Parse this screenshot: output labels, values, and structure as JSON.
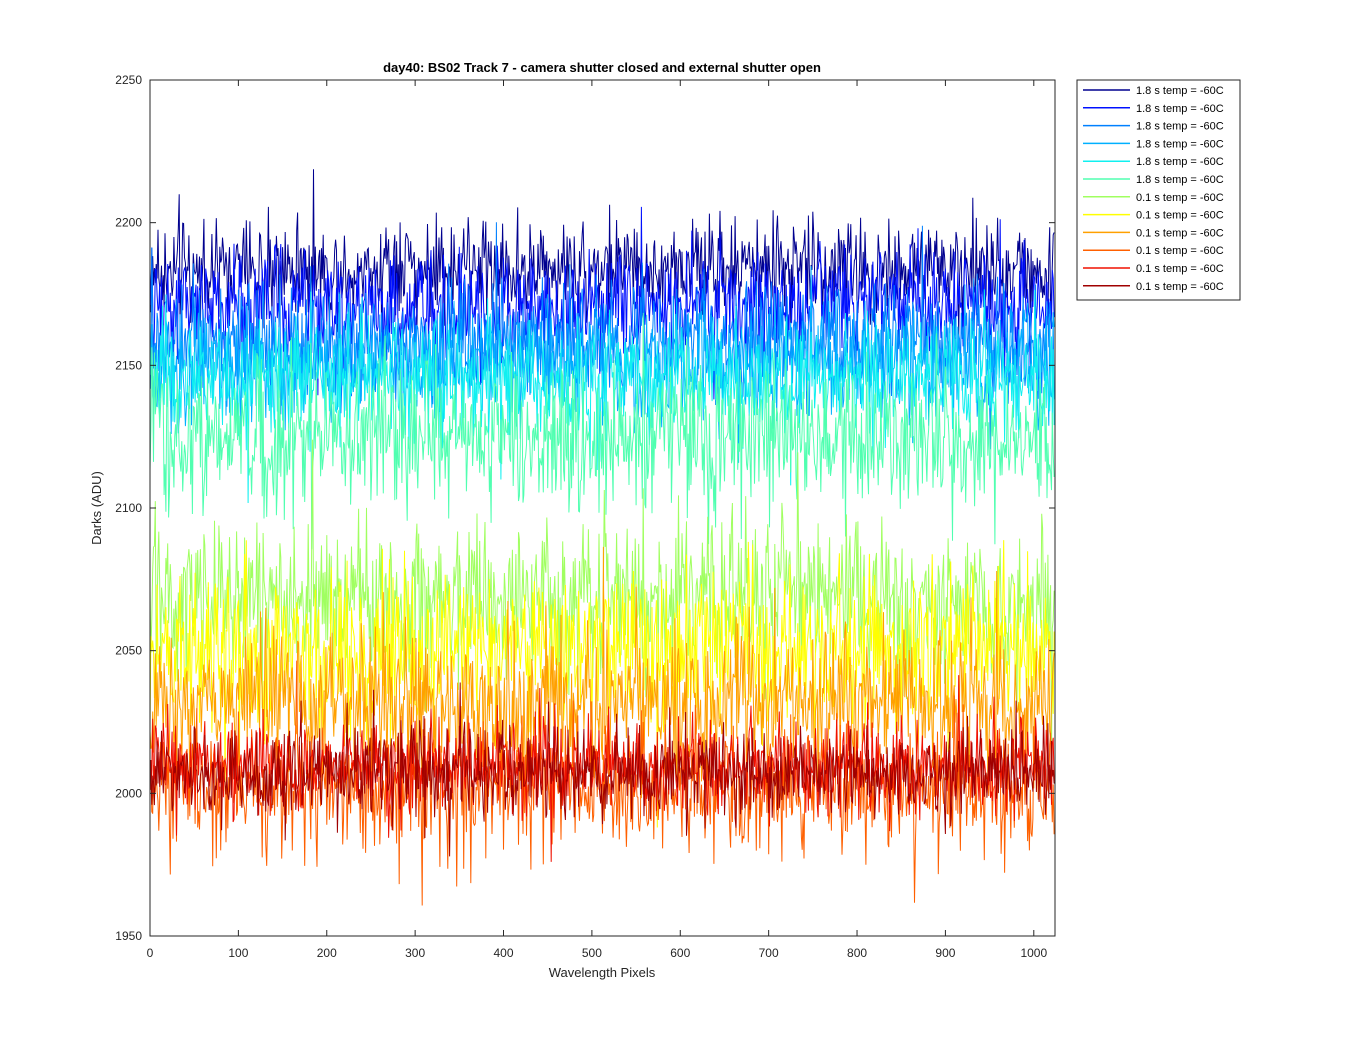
{
  "chart_data": {
    "type": "line",
    "title": "day40: BS02  Track 7 - camera shutter closed and external shutter open",
    "xlabel": "Wavelength Pixels",
    "ylabel": "Darks (ADU)",
    "xlim": [
      0,
      1024
    ],
    "ylim": [
      1950,
      2250
    ],
    "xticks": [
      0,
      100,
      200,
      300,
      400,
      500,
      600,
      700,
      800,
      900,
      1000
    ],
    "yticks": [
      1950,
      2000,
      2050,
      2100,
      2150,
      2200,
      2250
    ],
    "xtick_labels": [
      "0",
      "100",
      "200",
      "300",
      "400",
      "500",
      "600",
      "700",
      "800",
      "900",
      "1000"
    ],
    "ytick_labels": [
      "1950",
      "2000",
      "2050",
      "2100",
      "2150",
      "2200",
      "2250"
    ],
    "grid": false,
    "legend_position": "outside top-right",
    "series_note": "Each series is ~1024 noisy samples; summarized by approximate mean level and peak-to-peak spread (ADU).",
    "series": [
      {
        "name": "1.8 s temp = -60C",
        "color": "#00008f",
        "mean": 2184,
        "spread": 30
      },
      {
        "name": "1.8 s temp = -60C",
        "color": "#0010ff",
        "mean": 2171,
        "spread": 32
      },
      {
        "name": "1.8 s temp = -60C",
        "color": "#0080ff",
        "mean": 2158,
        "spread": 34
      },
      {
        "name": "1.8 s temp = -60C",
        "color": "#00b0ff",
        "mean": 2150,
        "spread": 34
      },
      {
        "name": "1.8 s temp = -60C",
        "color": "#10f0f0",
        "mean": 2145,
        "spread": 34
      },
      {
        "name": "1.8 s temp = -60C",
        "color": "#50ffb0",
        "mean": 2125,
        "spread": 44
      },
      {
        "name": "0.1 s temp = -60C",
        "color": "#a0ff60",
        "mean": 2068,
        "spread": 46
      },
      {
        "name": "0.1 s temp = -60C",
        "color": "#ffff00",
        "mean": 2050,
        "spread": 46
      },
      {
        "name": "0.1 s temp = -60C",
        "color": "#ffa000",
        "mean": 2032,
        "spread": 44
      },
      {
        "name": "0.1 s temp = -60C",
        "color": "#ff6000",
        "mean": 2002,
        "spread": 40
      },
      {
        "name": "0.1 s temp = -60C",
        "color": "#f01000",
        "mean": 2010,
        "spread": 26
      },
      {
        "name": "0.1 s temp = -60C",
        "color": "#a00000",
        "mean": 2007,
        "spread": 26
      }
    ]
  }
}
